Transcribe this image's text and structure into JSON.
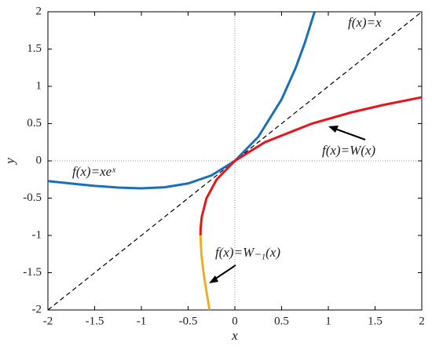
{
  "chart_data": {
    "type": "line",
    "xlabel": "x",
    "ylabel": "y",
    "xlim": [
      -2,
      2
    ],
    "ylim": [
      -2,
      2
    ],
    "xticks": [
      -2,
      -1.5,
      -1,
      -0.5,
      0,
      0.5,
      1,
      1.5,
      2
    ],
    "yticks": [
      -2,
      -1.5,
      -1,
      -0.5,
      0,
      0.5,
      1,
      1.5,
      2
    ],
    "zero_lines": true,
    "series": [
      {
        "name": "f(x)=x",
        "color": "#000000",
        "dashed": true,
        "x": [
          -2,
          2
        ],
        "values": [
          -2,
          2
        ]
      },
      {
        "name": "f(x)=xeˣ",
        "color": "#1a6fb5",
        "dashed": false,
        "x": [
          -2,
          -1.75,
          -1.5,
          -1.25,
          -1,
          -0.75,
          -0.5,
          -0.25,
          0,
          0.25,
          0.5,
          0.65,
          0.75,
          0.852
        ],
        "values": [
          -0.271,
          -0.304,
          -0.335,
          -0.358,
          -0.368,
          -0.354,
          -0.303,
          -0.195,
          0,
          0.321,
          0.824,
          1.245,
          1.588,
          1.997
        ]
      },
      {
        "name": "f(x)=W(x)",
        "color": "#e3161c",
        "dashed": false,
        "x": [
          -0.368,
          -0.366,
          -0.354,
          -0.303,
          -0.195,
          0,
          0.321,
          0.824,
          1.245,
          1.588,
          2
        ],
        "values": [
          -1,
          -0.9,
          -0.75,
          -0.5,
          -0.25,
          0,
          0.25,
          0.5,
          0.65,
          0.75,
          0.853
        ]
      },
      {
        "name": "f(x)=W₋₁(x)",
        "color": "#e8b02a",
        "dashed": false,
        "x": [
          -0.368,
          -0.358,
          -0.335,
          -0.304,
          -0.271
        ],
        "values": [
          -1,
          -1.25,
          -1.5,
          -1.75,
          -2
        ]
      }
    ]
  }
}
